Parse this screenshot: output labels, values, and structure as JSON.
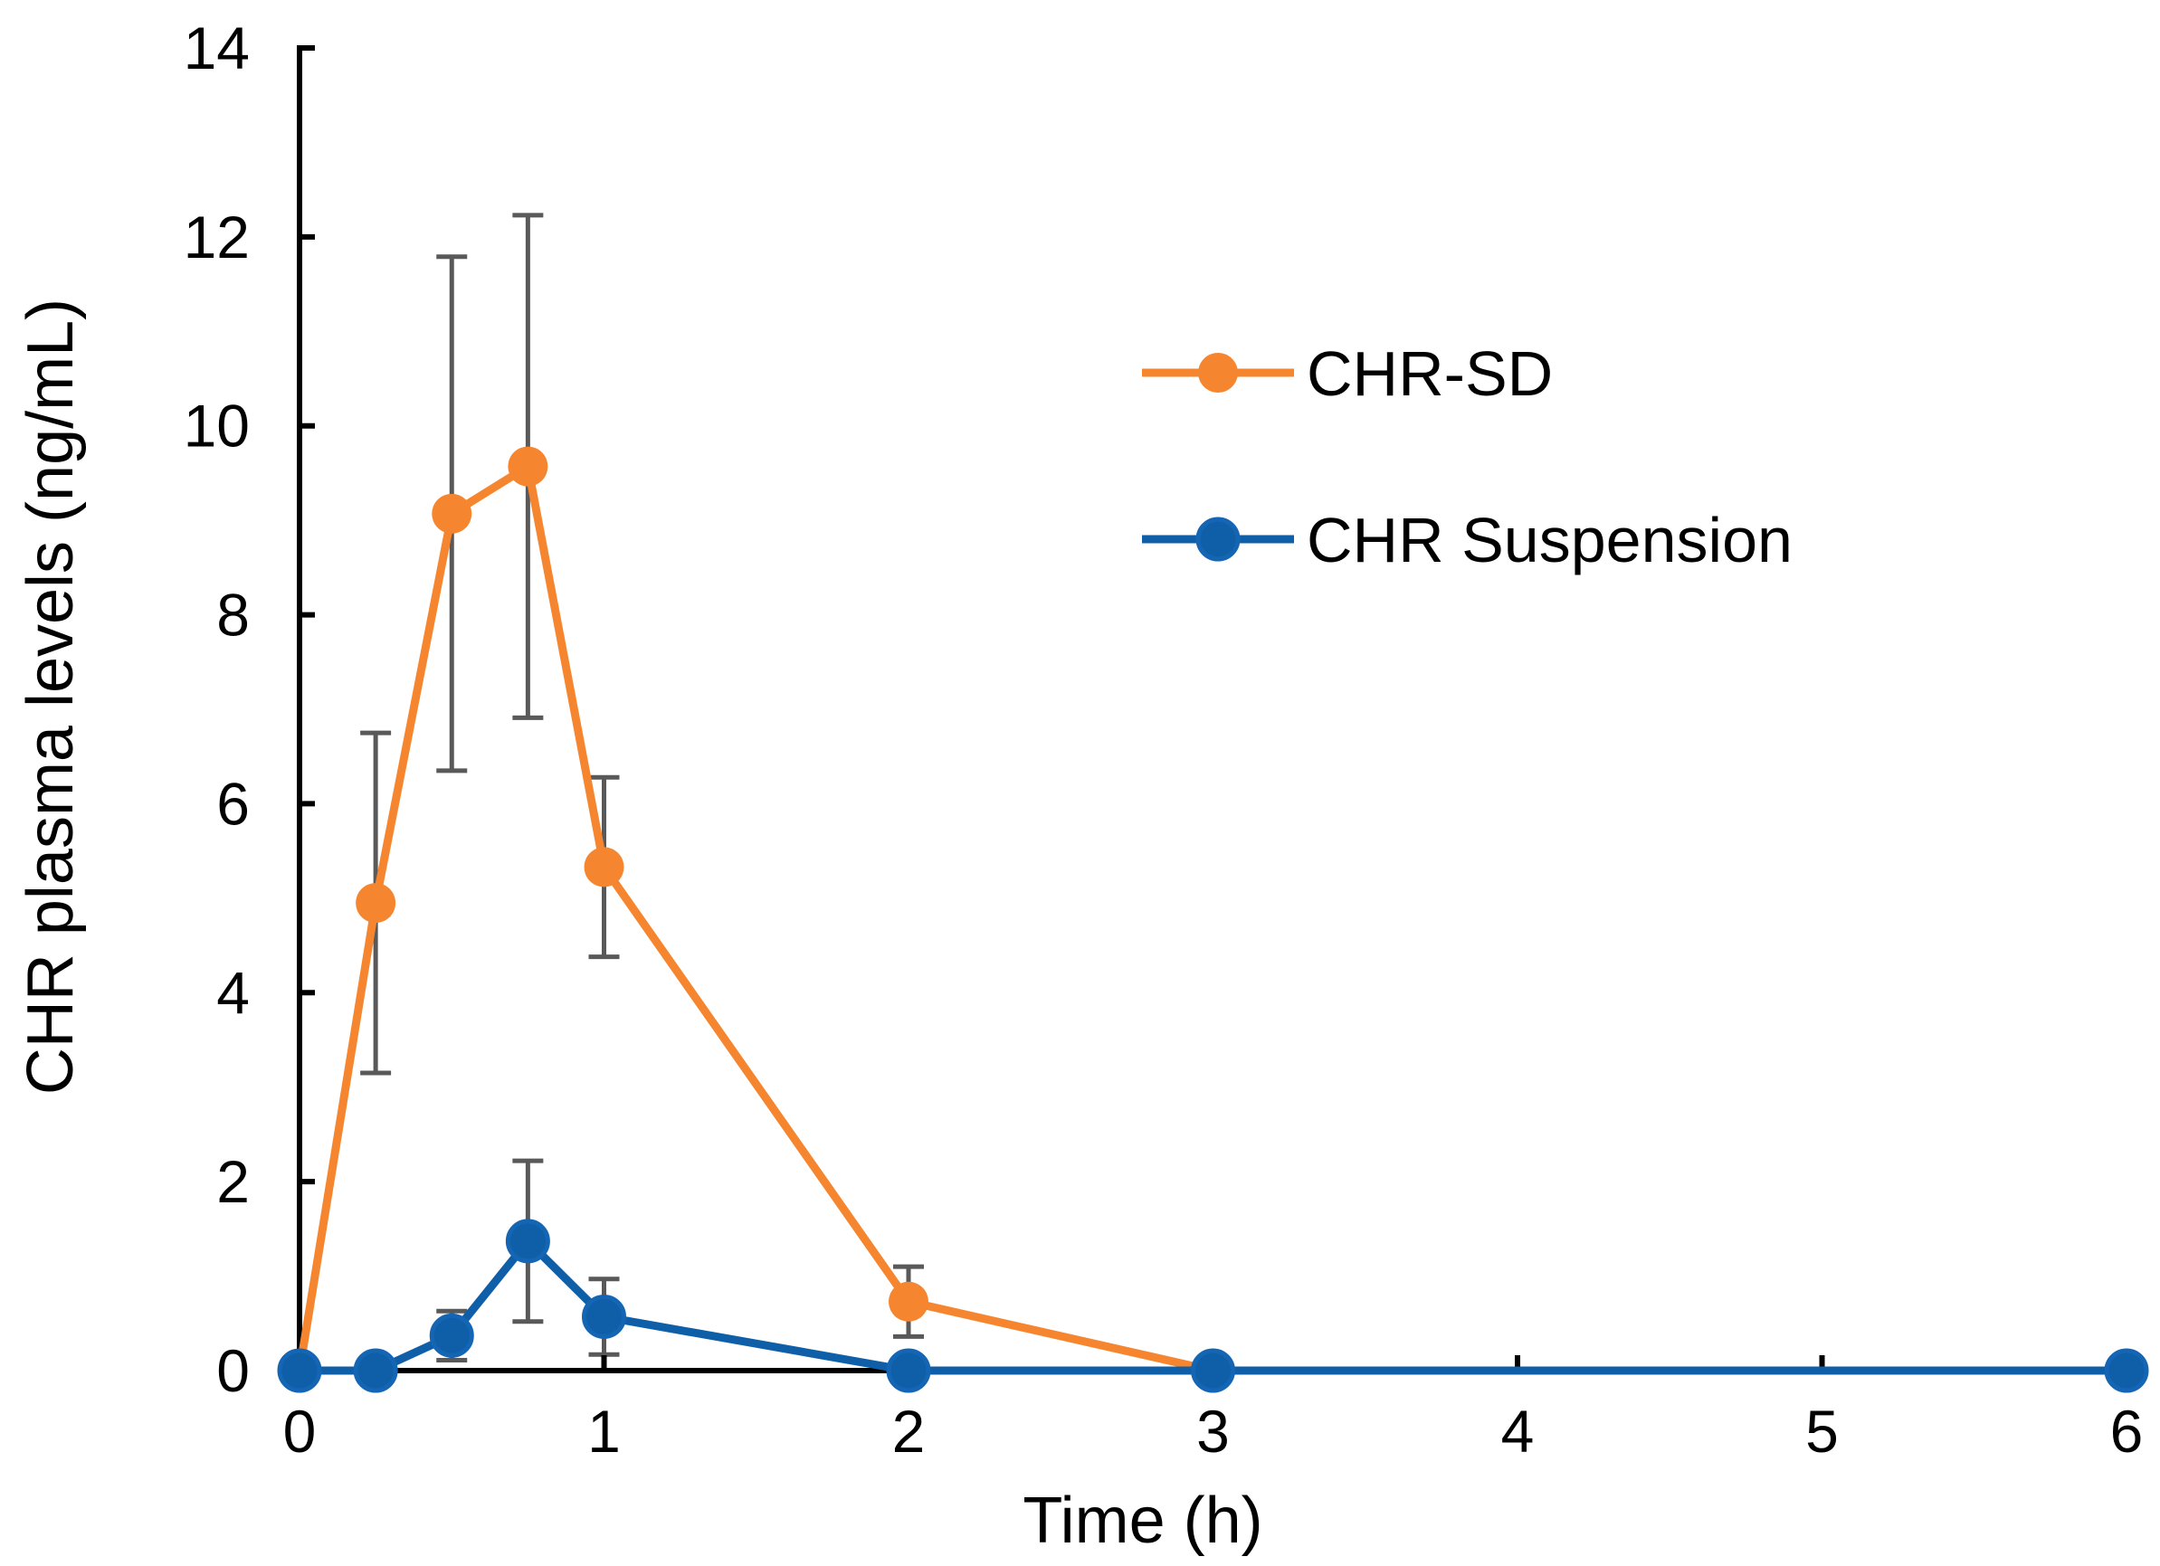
{
  "chart_data": {
    "type": "line",
    "title": "",
    "xlabel": "Time (h)",
    "ylabel": "CHR plasma levels (ng/mL)",
    "xlim": [
      0,
      6
    ],
    "ylim": [
      0,
      14
    ],
    "xticks": [
      0,
      1,
      2,
      3,
      4,
      5,
      6
    ],
    "yticks": [
      0,
      2,
      4,
      6,
      8,
      10,
      12,
      14
    ],
    "grid": false,
    "legend_position": "upper-right",
    "series": [
      {
        "name": "CHR-SD",
        "color": "#F5862F",
        "x": [
          0,
          0.25,
          0.5,
          0.75,
          1,
          2,
          3
        ],
        "values": [
          0,
          4.95,
          9.07,
          9.57,
          5.33,
          0.73,
          0
        ],
        "error": [
          0,
          1.8,
          2.72,
          2.66,
          0.95,
          0.37,
          0
        ]
      },
      {
        "name": "CHR Suspension",
        "color": "#0F5FA8",
        "x": [
          0,
          0.25,
          0.5,
          0.75,
          1,
          2,
          3,
          6
        ],
        "values": [
          0,
          0,
          0.37,
          1.37,
          0.57,
          0,
          0,
          0
        ],
        "error": [
          0,
          0,
          0.26,
          0.85,
          0.4,
          0,
          0,
          0
        ]
      }
    ]
  }
}
